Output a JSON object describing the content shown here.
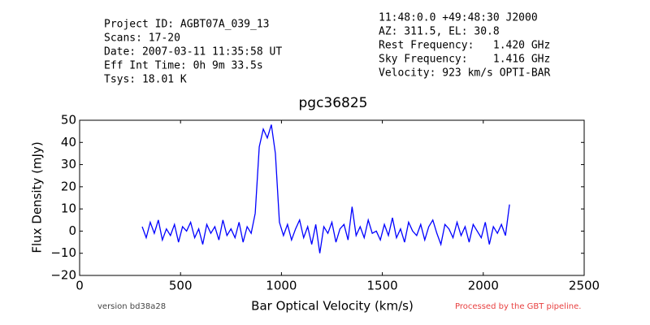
{
  "chart_data": {
    "type": "line",
    "title": "pgc36825",
    "info_left": [
      "Project ID: AGBT07A_039_13",
      "Scans: 17-20",
      "Date: 2007-03-11 11:35:58 UT",
      "Eff Int Time: 0h 9m 33.5s",
      "Tsys: 18.01 K"
    ],
    "info_right": [
      "11:48:0.0 +49:48:30 J2000",
      "AZ: 311.5, EL: 30.8",
      "Rest Frequency:   1.420 GHz",
      "Sky Frequency:    1.416 GHz",
      "Velocity: 923 km/s OPTI-BAR"
    ],
    "footer_left": "version bd38a28",
    "footer_right": "Processed by the GBT pipeline.",
    "xlabel": "Bar Optical Velocity (km/s)",
    "ylabel": "Flux Density (mJy)",
    "xlim": [
      0,
      2500
    ],
    "ylim": [
      -20,
      50
    ],
    "xticks": [
      0,
      500,
      1000,
      1500,
      2000,
      2500
    ],
    "yticks": [
      {
        "value": -20,
        "label": "−20"
      },
      {
        "value": -10,
        "label": "−10"
      },
      0,
      10,
      20,
      30,
      40,
      50
    ],
    "x": [
      310,
      330,
      350,
      370,
      390,
      410,
      430,
      450,
      470,
      490,
      510,
      530,
      550,
      570,
      590,
      610,
      630,
      650,
      670,
      690,
      710,
      730,
      750,
      770,
      790,
      810,
      830,
      850,
      870,
      890,
      910,
      930,
      950,
      970,
      990,
      1010,
      1030,
      1050,
      1070,
      1090,
      1110,
      1130,
      1150,
      1170,
      1190,
      1210,
      1230,
      1250,
      1270,
      1290,
      1310,
      1330,
      1350,
      1370,
      1390,
      1410,
      1430,
      1450,
      1470,
      1490,
      1510,
      1530,
      1550,
      1570,
      1590,
      1610,
      1630,
      1650,
      1670,
      1690,
      1710,
      1730,
      1750,
      1770,
      1790,
      1810,
      1830,
      1850,
      1870,
      1890,
      1910,
      1930,
      1950,
      1970,
      1990,
      2010,
      2030,
      2050,
      2070,
      2090,
      2110,
      2130
    ],
    "series": [
      {
        "color": "#0000ff",
        "values": [
          2,
          -3,
          4,
          -1,
          5,
          -4,
          1,
          -2,
          3,
          -5,
          2,
          0,
          4,
          -3,
          1,
          -6,
          3,
          -1,
          2,
          -4,
          5,
          -2,
          1,
          -3,
          4,
          -5,
          2,
          -1,
          8,
          38,
          46,
          42,
          48,
          35,
          4,
          -2,
          3,
          -4,
          1,
          5,
          -3,
          2,
          -6,
          3,
          -10,
          2,
          -1,
          4,
          -5,
          1,
          3,
          -4,
          11,
          -2,
          2,
          -3,
          5,
          -1,
          0,
          -4,
          3,
          -2,
          6,
          -3,
          1,
          -5,
          4,
          0,
          -2,
          3,
          -4,
          2,
          5,
          -1,
          -6,
          3,
          1,
          -3,
          4,
          -2,
          2,
          -5,
          3,
          0,
          -3,
          4,
          -6,
          2,
          -1,
          3,
          -2,
          12
        ]
      }
    ]
  }
}
